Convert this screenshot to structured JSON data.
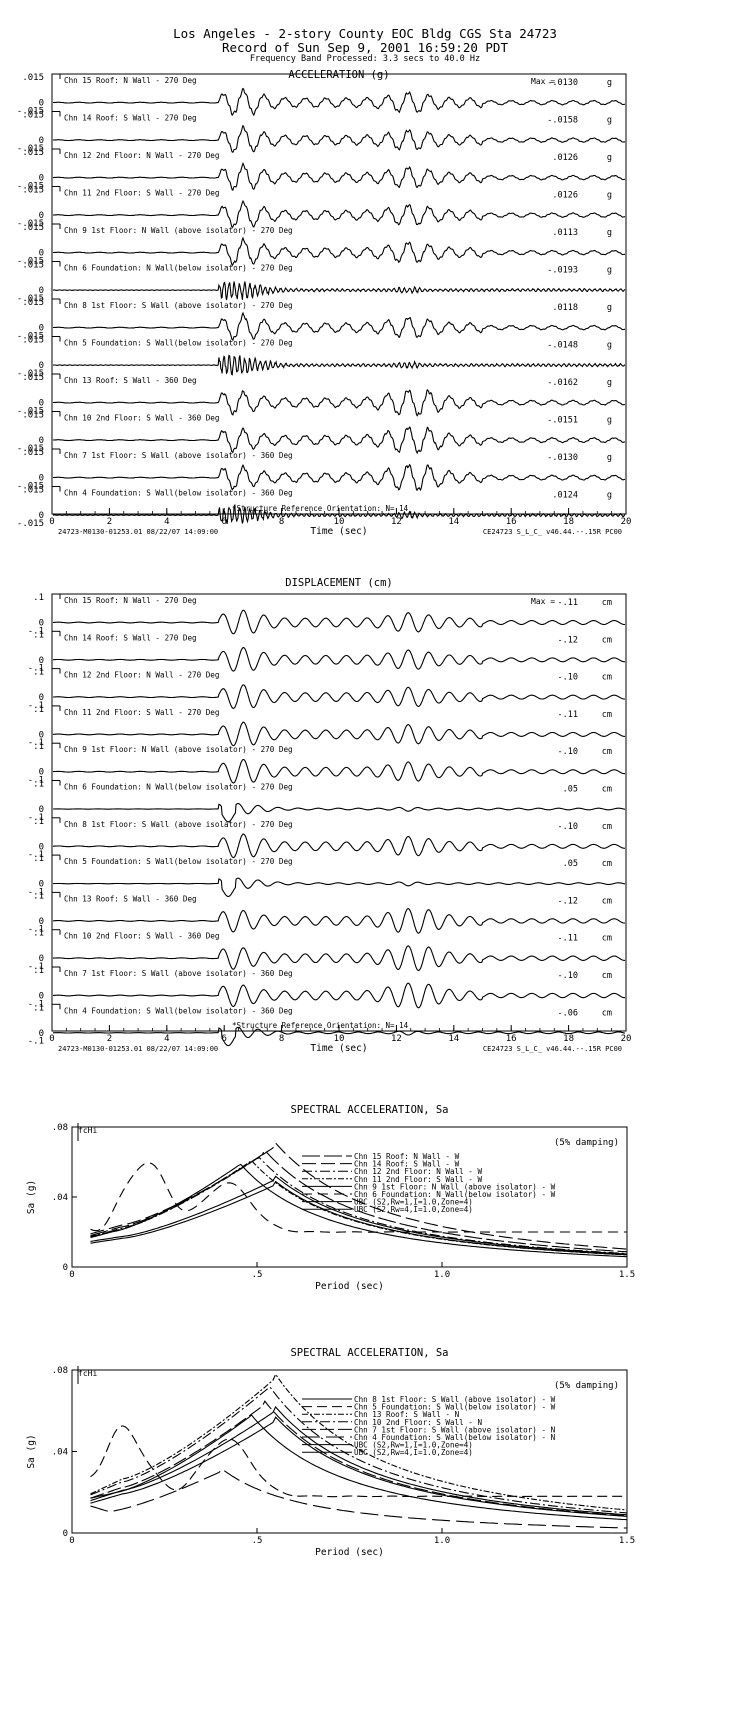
{
  "header": {
    "line1": "Los Angeles - 2-story County EOC Bldg  CGS Sta 24723",
    "line2": "Record of Sun Sep  9, 2001 16:59:20 PDT",
    "line3": "Frequency Band Processed: 3.3 secs to 40.0 Hz"
  },
  "chart_data": [
    {
      "type": "line",
      "title": "ACCELERATION (g)",
      "xlabel": "Time (sec)",
      "xlim": [
        0,
        20
      ],
      "xticks": [
        "0",
        "2",
        "4",
        "6",
        "8",
        "10",
        "12",
        "14",
        "16",
        "18",
        "20"
      ],
      "ylim": [
        -0.015,
        0.015
      ],
      "yticks": [
        ".015",
        "0",
        "-.015"
      ],
      "max_label": "Max =",
      "unit": "g",
      "footer_left": "24723-M0130-01253.01 08/22/07 14:09:00",
      "footer_right": "CE24723  S_L_C_  v46.44.--.15R PC00",
      "orientation_note": "*Structure Reference Orientation: N= 14",
      "channels": [
        {
          "name": "Chn 15  Roof: N Wall - 270 Deg",
          "max": "-.0130",
          "wave": "building"
        },
        {
          "name": "Chn 14  Roof: S Wall - 270 Deg",
          "max": "-.0158",
          "wave": "building"
        },
        {
          "name": "Chn 12  2nd Floor: N Wall - 270 Deg",
          "max": ".0126",
          "wave": "building"
        },
        {
          "name": "Chn 11  2nd Floor: S Wall - 270 Deg",
          "max": ".0126",
          "wave": "building"
        },
        {
          "name": "Chn 9  1st Floor: N Wall (above isolator) - 270 Deg",
          "max": ".0113",
          "wave": "building"
        },
        {
          "name": "Chn 6  Foundation: N Wall(below isolator) - 270 Deg",
          "max": "-.0193",
          "wave": "ground"
        },
        {
          "name": "Chn 8  1st Floor: S Wall (above isolator) - 270 Deg",
          "max": ".0118",
          "wave": "building"
        },
        {
          "name": "Chn 5  Foundation: S Wall(below isolator) - 270 Deg",
          "max": "-.0148",
          "wave": "ground"
        },
        {
          "name": "Chn 13  Roof: S Wall - 360 Deg",
          "max": "-.0162",
          "wave": "building2"
        },
        {
          "name": "Chn 10  2nd Floor: S Wall - 360 Deg",
          "max": "-.0151",
          "wave": "building2"
        },
        {
          "name": "Chn 7  1st Floor: S Wall (above isolator) - 360 Deg",
          "max": "-.0130",
          "wave": "building2"
        },
        {
          "name": "Chn 4  Foundation: S Wall(below isolator) - 360 Deg",
          "max": ".0124",
          "wave": "ground"
        }
      ]
    },
    {
      "type": "line",
      "title": "DISPLACEMENT (cm)",
      "xlabel": "Time (sec)",
      "xlim": [
        0,
        20
      ],
      "xticks": [
        "0",
        "2",
        "4",
        "6",
        "8",
        "10",
        "12",
        "14",
        "16",
        "18",
        "20"
      ],
      "ylim": [
        -0.1,
        0.1
      ],
      "yticks": [
        ".1",
        "0",
        "-.1"
      ],
      "max_label": "Max =",
      "unit": "cm",
      "footer_left": "24723-M0130-01253.01 08/22/07 14:09:00",
      "footer_right": "CE24723  S_L_C_  v46.44.--.15R PC00",
      "orientation_note": "*Structure Reference Orientation: N= 14",
      "channels": [
        {
          "name": "Chn 15  Roof: N Wall - 270 Deg",
          "max": "-.11",
          "wave": "dbuilding"
        },
        {
          "name": "Chn 14  Roof: S Wall - 270 Deg",
          "max": "-.12",
          "wave": "dbuilding"
        },
        {
          "name": "Chn 12  2nd Floor: N Wall - 270 Deg",
          "max": "-.10",
          "wave": "dbuilding"
        },
        {
          "name": "Chn 11  2nd Floor: S Wall - 270 Deg",
          "max": "-.11",
          "wave": "dbuilding"
        },
        {
          "name": "Chn 9  1st Floor: N Wall (above isolator) - 270 Deg",
          "max": "-.10",
          "wave": "dbuilding"
        },
        {
          "name": "Chn 6  Foundation: N Wall(below isolator) - 270 Deg",
          "max": ".05",
          "wave": "dground"
        },
        {
          "name": "Chn 8  1st Floor: S Wall (above isolator) - 270 Deg",
          "max": "-.10",
          "wave": "dbuilding"
        },
        {
          "name": "Chn 5  Foundation: S Wall(below isolator) - 270 Deg",
          "max": ".05",
          "wave": "dground"
        },
        {
          "name": "Chn 13  Roof: S Wall - 360 Deg",
          "max": "-.12",
          "wave": "dbuilding2"
        },
        {
          "name": "Chn 10  2nd Floor: S Wall - 360 Deg",
          "max": "-.11",
          "wave": "dbuilding2"
        },
        {
          "name": "Chn 7  1st Floor: S Wall (above isolator) - 360 Deg",
          "max": "-.10",
          "wave": "dbuilding2"
        },
        {
          "name": "Chn 4  Foundation: S Wall(below isolator) - 360 Deg",
          "max": "-.06",
          "wave": "dground"
        }
      ]
    },
    {
      "type": "line",
      "title": "SPECTRAL ACCELERATION, Sa",
      "xlabel": "Period (sec)",
      "ylabel": "Sa (g)",
      "xlim": [
        0,
        1.5
      ],
      "ylim": [
        0,
        0.08
      ],
      "xticks": [
        "0",
        ".5",
        "1.0",
        "1.5"
      ],
      "yticks": [
        ".08",
        ".04",
        "0"
      ],
      "corner_label": "fcHi",
      "damping": "(5% damping)",
      "series": [
        {
          "name": "Chn 15  Roof: N Wall - W",
          "dash": "18,4",
          "peak": 0.065,
          "tp": 0.52,
          "low": 0.015
        },
        {
          "name": "Chn 14  Roof: S Wall - W",
          "dash": "14,5",
          "peak": 0.069,
          "tp": 0.55,
          "low": 0.016
        },
        {
          "name": "Chn 12  2nd Floor: N Wall - W",
          "dash": "10,3,2,3",
          "peak": 0.062,
          "tp": 0.5,
          "low": 0.014
        },
        {
          "name": "Chn 11  2nd Floor: S Wall - W",
          "dash": "6,2,2,2",
          "peak": 0.06,
          "tp": 0.48,
          "low": 0.015
        },
        {
          "name": "Chn 9  1st Floor: N Wall (above isolator) - W",
          "dash": "",
          "peak": 0.058,
          "tp": 0.45,
          "low": 0.014
        },
        {
          "name": "Chn 6  Foundation: N Wall(below isolator) - W",
          "dash": "10,6",
          "peak": 0.06,
          "tp": 0.2,
          "low": 0.02
        },
        {
          "name": "UBC (S2,Rw=1,I=1.0,Zone=4)",
          "dash": "",
          "peak": 0.05,
          "tp": 0.55,
          "low": 0.013
        },
        {
          "name": "UBC (S2,Rw=4,I=1.0,Zone=4)",
          "dash": "",
          "peak": 0.047,
          "tp": 0.55,
          "low": 0.012
        }
      ]
    },
    {
      "type": "line",
      "title": "SPECTRAL ACCELERATION, Sa",
      "xlabel": "Period (sec)",
      "ylabel": "Sa (g)",
      "xlim": [
        0,
        1.5
      ],
      "ylim": [
        0,
        0.08
      ],
      "xticks": [
        "0",
        ".5",
        "1.0",
        "1.5"
      ],
      "yticks": [
        ".08",
        ".04",
        "0"
      ],
      "corner_label": "fcHi",
      "damping": "(5% damping)",
      "series": [
        {
          "name": "Chn 8  1st Floor: S Wall (above isolator) - W",
          "dash": "",
          "peak": 0.057,
          "tp": 0.48,
          "low": 0.015
        },
        {
          "name": "Chn 5  Foundation: S Wall(below isolator) - W",
          "dash": "10,5",
          "peak": 0.051,
          "tp": 0.14,
          "low": 0.018
        },
        {
          "name": "Chn 13  Roof: S Wall - N",
          "dash": "6,2,2,2",
          "peak": 0.076,
          "tp": 0.55,
          "low": 0.015
        },
        {
          "name": "Chn 10  2nd Floor: S Wall - N",
          "dash": "10,3,2,3",
          "peak": 0.071,
          "tp": 0.53,
          "low": 0.015
        },
        {
          "name": "Chn 7  1st Floor: S Wall (above isolator) - N",
          "dash": "14,4",
          "peak": 0.063,
          "tp": 0.52,
          "low": 0.014
        },
        {
          "name": "Chn 4  Foundation: S Wall(below isolator) - N",
          "dash": "18,6",
          "peak": 0.03,
          "tp": 0.4,
          "low": 0.016
        },
        {
          "name": "UBC (S2,Rw=1,I=1.0,Zone=4)",
          "dash": "",
          "peak": 0.06,
          "tp": 0.55,
          "low": 0.013
        },
        {
          "name": "UBC (S2,Rw=4,I=1.0,Zone=4)",
          "dash": "",
          "peak": 0.055,
          "tp": 0.55,
          "low": 0.012
        }
      ]
    }
  ]
}
